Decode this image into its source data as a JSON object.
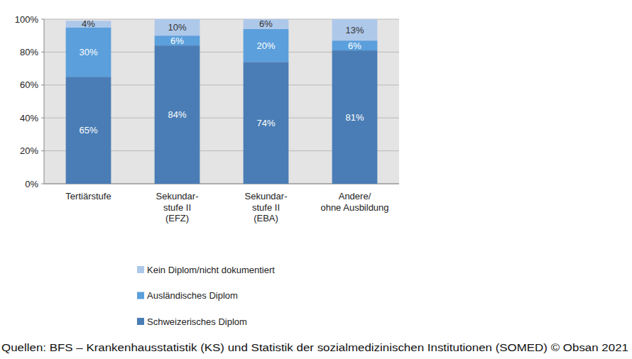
{
  "chart_data": {
    "type": "bar",
    "stacked": true,
    "data_labels": true,
    "grid": true,
    "legend": "bottom",
    "categories": [
      "Tertiärstufe",
      "Sekundar-\nstufe II\n(EFZ)",
      "Sekundar-\nstufe II\n(EBA)",
      "Andere/\nohne Ausbildung"
    ],
    "series": [
      {
        "name": "Schweizerisches Diplom",
        "color": "#4a7db5",
        "values": [
          65,
          84,
          74,
          81
        ],
        "value_labels": [
          "65%",
          "84%",
          "74%",
          "81%"
        ]
      },
      {
        "name": "Ausländisches Diplom",
        "color": "#5b9fdc",
        "values": [
          30,
          6,
          20,
          6
        ],
        "value_labels": [
          "30%",
          "6%",
          "20%",
          "6%"
        ]
      },
      {
        "name": "Kein Diplom/nicht dokumentiert",
        "color": "#aec8ea",
        "values": [
          4,
          10,
          6,
          13
        ],
        "value_labels": [
          "4%",
          "10%",
          "6%",
          "13%"
        ]
      }
    ],
    "ylim": [
      0,
      100
    ],
    "yticks": [
      {
        "value": 0,
        "label": "0%"
      },
      {
        "value": 20,
        "label": "20%"
      },
      {
        "value": 40,
        "label": "40%"
      },
      {
        "value": 60,
        "label": "60%"
      },
      {
        "value": 80,
        "label": "80%"
      },
      {
        "value": 100,
        "label": "100%"
      }
    ],
    "source": "Quellen: BFS – Krankenhausstatistik (KS) und Statistik der sozialmedizinischen Institutionen (SOMED) © Obsan 2021"
  }
}
